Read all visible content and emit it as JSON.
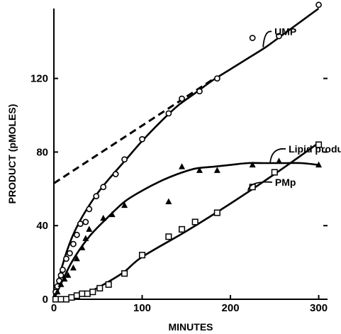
{
  "chart_data": {
    "type": "scatter",
    "title": "",
    "xlabel": "MINUTES",
    "ylabel": "PRODUCT (pMOLES)",
    "xlim": [
      0,
      310
    ],
    "ylim": [
      0,
      158
    ],
    "x_ticks": [
      "0",
      "100",
      "200",
      "300"
    ],
    "y_ticks": [
      "0",
      "40",
      "80",
      "120"
    ],
    "grid": false,
    "series": [
      {
        "name": "UMP",
        "marker": "circle",
        "points": [
          [
            2,
            4
          ],
          [
            4,
            7
          ],
          [
            6,
            10
          ],
          [
            8,
            13
          ],
          [
            10,
            16
          ],
          [
            14,
            22
          ],
          [
            18,
            25
          ],
          [
            22,
            30
          ],
          [
            26,
            35
          ],
          [
            30,
            41
          ],
          [
            36,
            42
          ],
          [
            40,
            49
          ],
          [
            48,
            56
          ],
          [
            56,
            61
          ],
          [
            70,
            68
          ],
          [
            80,
            76
          ],
          [
            100,
            87
          ],
          [
            130,
            101
          ],
          [
            145,
            109
          ],
          [
            165,
            113
          ],
          [
            185,
            120
          ],
          [
            225,
            142
          ],
          [
            255,
            143
          ],
          [
            300,
            160
          ]
        ],
        "curve": [
          [
            0,
            0
          ],
          [
            10,
            19
          ],
          [
            20,
            33
          ],
          [
            30,
            43
          ],
          [
            40,
            51
          ],
          [
            50,
            58
          ],
          [
            60,
            64
          ],
          [
            80,
            75
          ],
          [
            100,
            86
          ],
          [
            120,
            96
          ],
          [
            140,
            105
          ],
          [
            160,
            112
          ],
          [
            180,
            119
          ],
          [
            200,
            125
          ],
          [
            220,
            131
          ],
          [
            240,
            137
          ],
          [
            260,
            144
          ],
          [
            280,
            151
          ],
          [
            300,
            158
          ]
        ]
      },
      {
        "name": "Lipid product",
        "marker": "triangle",
        "points": [
          [
            4,
            4
          ],
          [
            8,
            8
          ],
          [
            12,
            11
          ],
          [
            16,
            13
          ],
          [
            22,
            17
          ],
          [
            26,
            22
          ],
          [
            32,
            28
          ],
          [
            36,
            33
          ],
          [
            40,
            38
          ],
          [
            56,
            44
          ],
          [
            66,
            46
          ],
          [
            80,
            51
          ],
          [
            130,
            53
          ],
          [
            145,
            72
          ],
          [
            165,
            70
          ],
          [
            185,
            70
          ],
          [
            225,
            73
          ],
          [
            255,
            75
          ],
          [
            300,
            73
          ]
        ],
        "curve": [
          [
            0,
            0
          ],
          [
            20,
            20
          ],
          [
            40,
            34
          ],
          [
            60,
            44
          ],
          [
            80,
            53
          ],
          [
            100,
            59
          ],
          [
            120,
            64
          ],
          [
            140,
            68
          ],
          [
            160,
            71
          ],
          [
            180,
            72
          ],
          [
            200,
            73
          ],
          [
            220,
            74
          ],
          [
            240,
            74
          ],
          [
            260,
            74
          ],
          [
            280,
            74
          ],
          [
            300,
            73
          ]
        ]
      },
      {
        "name": "PMp",
        "marker": "square",
        "points": [
          [
            2,
            0
          ],
          [
            8,
            0
          ],
          [
            14,
            0
          ],
          [
            20,
            1
          ],
          [
            26,
            2
          ],
          [
            32,
            3
          ],
          [
            38,
            3
          ],
          [
            44,
            4
          ],
          [
            52,
            6
          ],
          [
            62,
            8
          ],
          [
            80,
            14
          ],
          [
            100,
            24
          ],
          [
            130,
            34
          ],
          [
            145,
            38
          ],
          [
            160,
            42
          ],
          [
            185,
            47
          ],
          [
            225,
            61
          ],
          [
            250,
            69
          ],
          [
            300,
            84
          ]
        ],
        "curve": [
          [
            0,
            0
          ],
          [
            20,
            1
          ],
          [
            40,
            4
          ],
          [
            60,
            9
          ],
          [
            80,
            15
          ],
          [
            100,
            23
          ],
          [
            150,
            37
          ],
          [
            200,
            52
          ],
          [
            250,
            68
          ],
          [
            300,
            85
          ]
        ]
      }
    ],
    "extrapolation": {
      "style": "dashed",
      "from": [
        0,
        63
      ],
      "to": [
        185,
        121
      ]
    },
    "annotations": [
      {
        "label": "UMP",
        "points_to": [
          237,
          137
        ]
      },
      {
        "label": "Lipid product",
        "points_to": [
          245,
          74
        ]
      },
      {
        "label": "PMp",
        "points_to": [
          220,
          59
        ]
      }
    ]
  }
}
